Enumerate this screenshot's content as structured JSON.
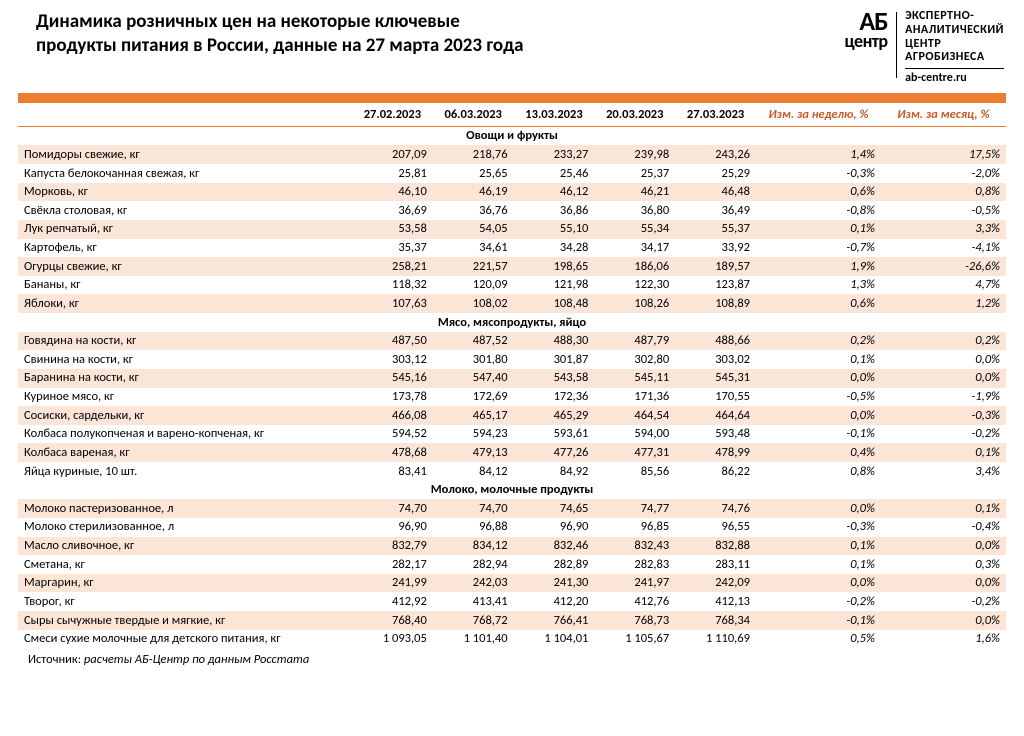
{
  "title_line1": "Динамика розничных цен на некоторые ключевые",
  "title_line2": "продукты питания в России, данные на 27 марта 2023 года",
  "logo": {
    "ab": "АБ",
    "center": "центр",
    "r1": "ЭКСПЕРТНО-",
    "r2": "АНАЛИТИЧЕСКИЙ",
    "r3": "ЦЕНТР",
    "r4": "АГРОБИЗНЕСА",
    "url": "ab-centre.ru"
  },
  "colors": {
    "accent": "#ed7d31",
    "row_odd": "#fbe5d6",
    "row_even": "#ffffff",
    "change_text": "#c55a2a"
  },
  "columns": {
    "dates": [
      "27.02.2023",
      "06.03.2023",
      "13.03.2023",
      "20.03.2023",
      "27.03.2023"
    ],
    "week": "Изм. за неделю, %",
    "month": "Изм. за месяц, %"
  },
  "sections": [
    {
      "title": "Овощи и фрукты",
      "rows": [
        {
          "name": "Помидоры свежие, кг",
          "v": [
            "207,09",
            "218,76",
            "233,27",
            "239,98",
            "243,26"
          ],
          "w": "1,4%",
          "m": "17,5%"
        },
        {
          "name": "Капуста белокочанная свежая, кг",
          "v": [
            "25,81",
            "25,65",
            "25,46",
            "25,37",
            "25,29"
          ],
          "w": "-0,3%",
          "m": "-2,0%"
        },
        {
          "name": "Морковь, кг",
          "v": [
            "46,10",
            "46,19",
            "46,12",
            "46,21",
            "46,48"
          ],
          "w": "0,6%",
          "m": "0,8%"
        },
        {
          "name": "Свёкла столовая, кг",
          "v": [
            "36,69",
            "36,76",
            "36,86",
            "36,80",
            "36,49"
          ],
          "w": "-0,8%",
          "m": "-0,5%"
        },
        {
          "name": "Лук репчатый, кг",
          "v": [
            "53,58",
            "54,05",
            "55,10",
            "55,34",
            "55,37"
          ],
          "w": "0,1%",
          "m": "3,3%"
        },
        {
          "name": "Картофель, кг",
          "v": [
            "35,37",
            "34,61",
            "34,28",
            "34,17",
            "33,92"
          ],
          "w": "-0,7%",
          "m": "-4,1%"
        },
        {
          "name": "Огурцы свежие, кг",
          "v": [
            "258,21",
            "221,57",
            "198,65",
            "186,06",
            "189,57"
          ],
          "w": "1,9%",
          "m": "-26,6%"
        },
        {
          "name": "Бананы, кг",
          "v": [
            "118,32",
            "120,09",
            "121,98",
            "122,30",
            "123,87"
          ],
          "w": "1,3%",
          "m": "4,7%"
        },
        {
          "name": "Яблоки, кг",
          "v": [
            "107,63",
            "108,02",
            "108,48",
            "108,26",
            "108,89"
          ],
          "w": "0,6%",
          "m": "1,2%"
        }
      ]
    },
    {
      "title": "Мясо, мясопродукты, яйцо",
      "rows": [
        {
          "name": "Говядина на кости, кг",
          "v": [
            "487,50",
            "487,52",
            "488,30",
            "487,79",
            "488,66"
          ],
          "w": "0,2%",
          "m": "0,2%"
        },
        {
          "name": "Свинина на кости, кг",
          "v": [
            "303,12",
            "301,80",
            "301,87",
            "302,80",
            "303,02"
          ],
          "w": "0,1%",
          "m": "0,0%"
        },
        {
          "name": "Баранина на кости, кг",
          "v": [
            "545,16",
            "547,40",
            "543,58",
            "545,11",
            "545,31"
          ],
          "w": "0,0%",
          "m": "0,0%"
        },
        {
          "name": "Куриное мясо, кг",
          "v": [
            "173,78",
            "172,69",
            "172,36",
            "171,36",
            "170,55"
          ],
          "w": "-0,5%",
          "m": "-1,9%"
        },
        {
          "name": "Сосиски, сардельки, кг",
          "v": [
            "466,08",
            "465,17",
            "465,29",
            "464,54",
            "464,64"
          ],
          "w": "0,0%",
          "m": "-0,3%"
        },
        {
          "name": "Колбаса полукопченая и варено-копченая, кг",
          "v": [
            "594,52",
            "594,23",
            "593,61",
            "594,00",
            "593,48"
          ],
          "w": "-0,1%",
          "m": "-0,2%"
        },
        {
          "name": "Колбаса вареная, кг",
          "v": [
            "478,68",
            "479,13",
            "477,26",
            "477,31",
            "478,99"
          ],
          "w": "0,4%",
          "m": "0,1%"
        },
        {
          "name": "Яйца куриные, 10 шт.",
          "v": [
            "83,41",
            "84,12",
            "84,92",
            "85,56",
            "86,22"
          ],
          "w": "0,8%",
          "m": "3,4%"
        }
      ]
    },
    {
      "title": "Молоко, молочные продукты",
      "rows": [
        {
          "name": "Молоко пастеризованное, л",
          "v": [
            "74,70",
            "74,70",
            "74,65",
            "74,77",
            "74,76"
          ],
          "w": "0,0%",
          "m": "0,1%"
        },
        {
          "name": "Молоко стерилизованное, л",
          "v": [
            "96,90",
            "96,88",
            "96,90",
            "96,85",
            "96,55"
          ],
          "w": "-0,3%",
          "m": "-0,4%"
        },
        {
          "name": "Масло сливочное, кг",
          "v": [
            "832,79",
            "834,12",
            "832,46",
            "832,43",
            "832,88"
          ],
          "w": "0,1%",
          "m": "0,0%"
        },
        {
          "name": "Сметана, кг",
          "v": [
            "282,17",
            "282,94",
            "282,89",
            "282,83",
            "283,11"
          ],
          "w": "0,1%",
          "m": "0,3%"
        },
        {
          "name": "Маргарин, кг",
          "v": [
            "241,99",
            "242,03",
            "241,30",
            "241,97",
            "242,09"
          ],
          "w": "0,0%",
          "m": "0,0%"
        },
        {
          "name": "Творог, кг",
          "v": [
            "412,92",
            "413,41",
            "412,20",
            "412,76",
            "412,13"
          ],
          "w": "-0,2%",
          "m": "-0,2%"
        },
        {
          "name": "Сыры сычужные твердые и мягкие, кг",
          "v": [
            "768,40",
            "768,72",
            "766,41",
            "768,73",
            "768,34"
          ],
          "w": "-0,1%",
          "m": "0,0%"
        },
        {
          "name": "Смеси сухие молочные для детского питания, кг",
          "v": [
            "1 093,05",
            "1 101,40",
            "1 104,01",
            "1 105,67",
            "1 110,69"
          ],
          "w": "0,5%",
          "m": "1,6%"
        }
      ]
    }
  ],
  "source_label": "Источник:",
  "source_text": "расчеты АБ-Центр по данным Росстата"
}
